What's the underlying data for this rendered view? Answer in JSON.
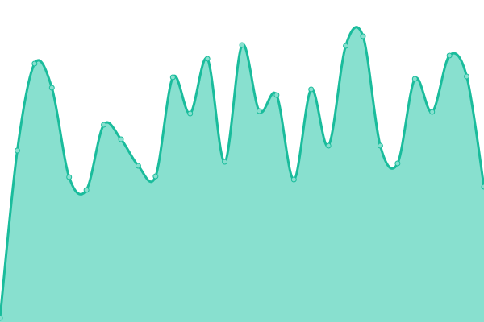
{
  "chart_data": {
    "type": "area",
    "title": "",
    "xlabel": "",
    "ylabel": "",
    "x": [
      0,
      1,
      2,
      3,
      4,
      5,
      6,
      7,
      8,
      9,
      10,
      11,
      12,
      13,
      14,
      15,
      16,
      17,
      18,
      19,
      20,
      21,
      22,
      23,
      24,
      25,
      26,
      27,
      28
    ],
    "values": [
      5,
      213,
      321,
      291,
      180,
      164,
      245,
      227,
      194,
      181,
      304,
      259,
      327,
      199,
      344,
      262,
      282,
      177,
      289,
      219,
      343,
      355,
      219,
      197,
      302,
      261,
      331,
      305,
      168
    ],
    "ylim": [
      0,
      400
    ],
    "grid": false,
    "axes_visible": false,
    "smooth": true,
    "markers": true,
    "colors": {
      "line": "#1abc9c",
      "fill": "#88e0cf",
      "marker_fill": "#88e0cf"
    }
  }
}
